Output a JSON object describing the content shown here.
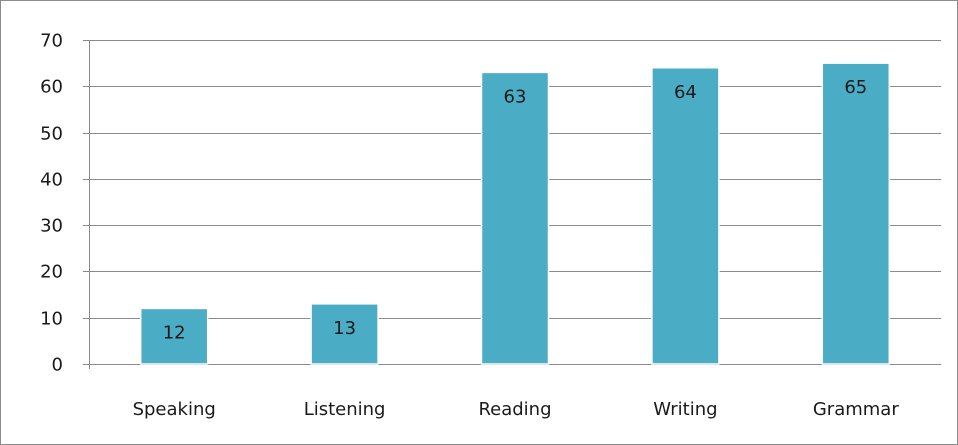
{
  "chart_data": {
    "type": "bar",
    "categories": [
      "Speaking",
      "Listening",
      "Reading",
      "Writing",
      "Grammar"
    ],
    "values": [
      12,
      13,
      63,
      64,
      65
    ],
    "title": "",
    "xlabel": "",
    "ylabel": "",
    "ylim": [
      0,
      70
    ],
    "yticks": [
      0,
      10,
      20,
      30,
      40,
      50,
      60,
      70
    ],
    "grid": true,
    "legend": "none",
    "bar_color": "#4bacc6",
    "bar_edge_color": "#ffffff"
  }
}
